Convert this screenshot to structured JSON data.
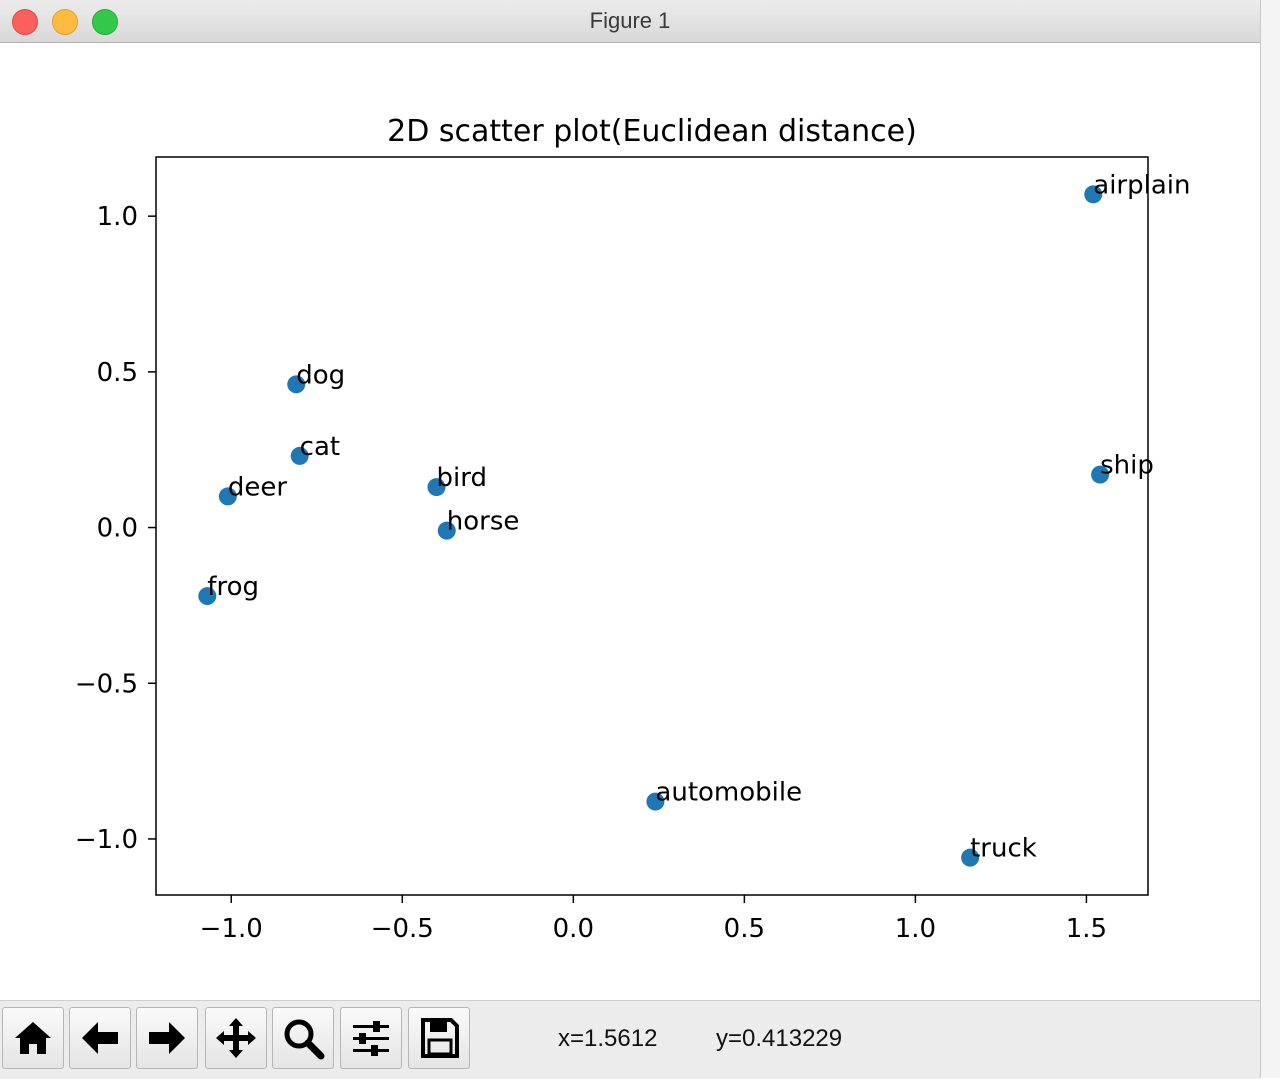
{
  "window": {
    "title": "Figure 1"
  },
  "chart_data": {
    "type": "scatter",
    "title": "2D scatter plot(Euclidean distance)",
    "xlabel": "",
    "ylabel": "",
    "xlim": [
      -1.22,
      1.68
    ],
    "ylim": [
      -1.18,
      1.19
    ],
    "xticks": [
      -1.0,
      -0.5,
      0.0,
      0.5,
      1.0,
      1.5
    ],
    "xtick_labels": [
      "−1.0",
      "−0.5",
      "0.0",
      "0.5",
      "1.0",
      "1.5"
    ],
    "yticks": [
      -1.0,
      -0.5,
      0.0,
      0.5,
      1.0
    ],
    "ytick_labels": [
      "−1.0",
      "−0.5",
      "0.0",
      "0.5",
      "1.0"
    ],
    "grid": false,
    "color": "#1f77b4",
    "points": [
      {
        "label": "airplain",
        "x": 1.52,
        "y": 1.07
      },
      {
        "label": "automobile",
        "x": 0.24,
        "y": -0.88
      },
      {
        "label": "bird",
        "x": -0.4,
        "y": 0.13
      },
      {
        "label": "cat",
        "x": -0.8,
        "y": 0.23
      },
      {
        "label": "deer",
        "x": -1.01,
        "y": 0.1
      },
      {
        "label": "dog",
        "x": -0.81,
        "y": 0.46
      },
      {
        "label": "frog",
        "x": -1.07,
        "y": -0.22
      },
      {
        "label": "horse",
        "x": -0.37,
        "y": -0.01
      },
      {
        "label": "ship",
        "x": 1.54,
        "y": 0.17
      },
      {
        "label": "truck",
        "x": 1.16,
        "y": -1.06
      }
    ]
  },
  "toolbar": {
    "buttons": [
      {
        "name": "home-button",
        "icon": "home-icon"
      },
      {
        "name": "back-button",
        "icon": "arrow-left-icon"
      },
      {
        "name": "forward-button",
        "icon": "arrow-right-icon"
      },
      {
        "name": "pan-button",
        "icon": "move-icon"
      },
      {
        "name": "zoom-button",
        "icon": "magnifier-icon"
      },
      {
        "name": "configure-subplots-button",
        "icon": "sliders-icon"
      },
      {
        "name": "save-button",
        "icon": "floppy-icon"
      }
    ],
    "x_readout": "x=1.5612",
    "y_readout": "y=0.413229"
  }
}
